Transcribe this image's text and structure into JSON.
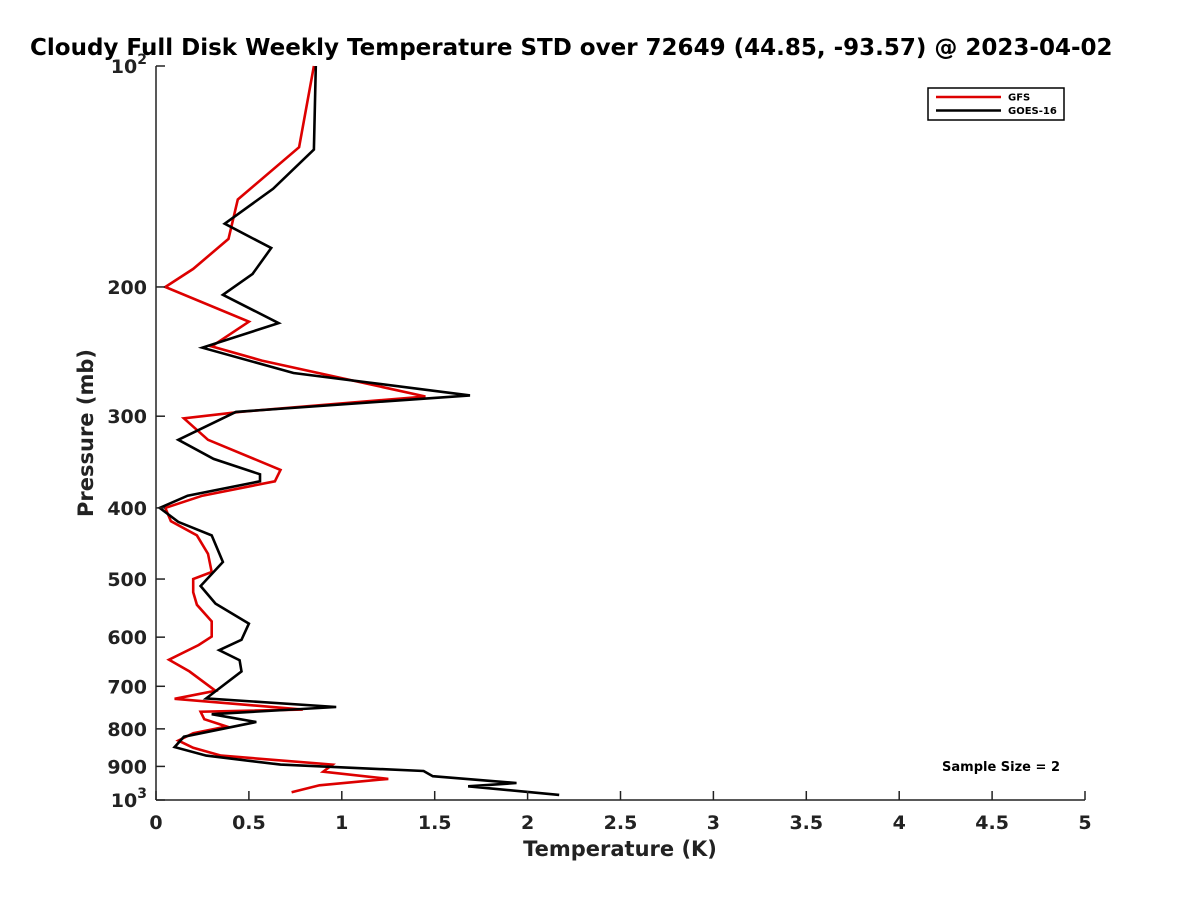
{
  "chart_data": {
    "type": "line",
    "title": "Cloudy Full Disk Weekly Temperature STD over 72649 (44.85, -93.57) @ 2023-04-02",
    "xlabel": "Temperature (K)",
    "ylabel": "Pressure (mb)",
    "xlim": [
      0,
      5
    ],
    "ylim": [
      100,
      1000
    ],
    "yscale": "log",
    "yreversed": true,
    "xticks": [
      0,
      0.5,
      1,
      1.5,
      2,
      2.5,
      3,
      3.5,
      4,
      4.5,
      5
    ],
    "xtick_labels": [
      "0",
      "0.5",
      "1",
      "1.5",
      "2",
      "2.5",
      "3",
      "3.5",
      "4",
      "4.5",
      "5"
    ],
    "yticks": [
      100,
      200,
      300,
      400,
      500,
      600,
      700,
      800,
      900,
      1000
    ],
    "ytick_labels": [
      "10^2",
      "200",
      "300",
      "400",
      "500",
      "600",
      "700",
      "800",
      "900",
      "10^3"
    ],
    "grid": false,
    "legend_position": "top-right",
    "annotation": "Sample Size = 2",
    "series": [
      {
        "name": "GFS",
        "color": "#dd0000",
        "x": [
          0.85,
          0.77,
          0.44,
          0.39,
          0.2,
          0.05,
          0.5,
          0.3,
          0.57,
          1.45,
          0.45,
          0.15,
          0.28,
          0.67,
          0.64,
          0.25,
          0.05,
          0.08,
          0.22,
          0.28,
          0.3,
          0.2,
          0.2,
          0.22,
          0.3,
          0.3,
          0.23,
          0.07,
          0.18,
          0.32,
          0.1,
          0.79,
          0.24,
          0.26,
          0.38,
          0.2,
          0.12,
          0.2,
          0.35,
          0.95,
          0.9,
          1.25,
          0.88,
          0.73
        ],
        "y": [
          100,
          129,
          152,
          172,
          189,
          200,
          223,
          241,
          252,
          282,
          296,
          302,
          323,
          355,
          368,
          385,
          400,
          417,
          436,
          462,
          489,
          500,
          521,
          542,
          571,
          599,
          615,
          644,
          668,
          710,
          728,
          753,
          758,
          776,
          794,
          811,
          830,
          849,
          870,
          895,
          915,
          936,
          955,
          976
        ]
      },
      {
        "name": "GOES-16",
        "color": "#000000",
        "x": [
          0.86,
          0.85,
          0.63,
          0.37,
          0.62,
          0.52,
          0.36,
          0.66,
          0.25,
          0.74,
          1.69,
          0.43,
          0.12,
          0.31,
          0.56,
          0.56,
          0.17,
          0.02,
          0.12,
          0.3,
          0.36,
          0.24,
          0.32,
          0.5,
          0.46,
          0.34,
          0.45,
          0.46,
          0.27,
          0.97,
          0.3,
          0.54,
          0.15,
          0.1,
          0.27,
          0.67,
          1.44,
          1.49,
          1.94,
          1.68,
          2.17
        ],
        "y": [
          100,
          130,
          147,
          164,
          177,
          192,
          205,
          224,
          242,
          262,
          281,
          296,
          323,
          343,
          360,
          368,
          385,
          400,
          418,
          436,
          474,
          511,
          540,
          575,
          605,
          625,
          645,
          668,
          727,
          747,
          764,
          783,
          820,
          847,
          870,
          895,
          913,
          928,
          948,
          958,
          984
        ]
      }
    ]
  }
}
